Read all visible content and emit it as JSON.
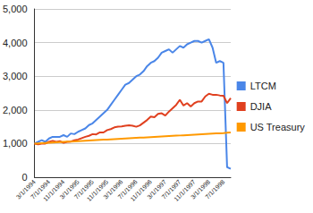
{
  "chart_data": {
    "type": "line",
    "categories": [
      "3/1/1994",
      null,
      null,
      null,
      "7/1/1994",
      null,
      null,
      null,
      "11/1/1994",
      null,
      null,
      null,
      "3/1/1995",
      null,
      null,
      null,
      "7/1/1995",
      null,
      null,
      null,
      "11/1/1995",
      null,
      null,
      null,
      "3/1/1996",
      null,
      null,
      null,
      "7/1/1996",
      null,
      null,
      null,
      "11/1/1996",
      null,
      null,
      null,
      "3/1/1997",
      null,
      null,
      null,
      "7/1/1997",
      null,
      null,
      null,
      "11/1/1997",
      null,
      null,
      null,
      "3/1/1998",
      null,
      null,
      null,
      "7/1/1998",
      null,
      null
    ],
    "series": [
      {
        "name": "LTCM",
        "color": "#4a86e8",
        "values": [
          1000,
          1050,
          1100,
          1050,
          1150,
          1200,
          1200,
          1200,
          1250,
          1200,
          1300,
          1280,
          1350,
          1400,
          1450,
          1550,
          1600,
          1700,
          1800,
          1900,
          2000,
          2150,
          2300,
          2450,
          2600,
          2750,
          2800,
          2900,
          3000,
          3050,
          3150,
          3300,
          3400,
          3450,
          3550,
          3700,
          3750,
          3800,
          3700,
          3800,
          3900,
          3850,
          3950,
          4000,
          4050,
          4050,
          4000,
          4050,
          4100,
          3850,
          3400,
          3450,
          3400,
          300,
          250
        ]
      },
      {
        "name": "DJIA",
        "color": "#e0401f",
        "values": [
          1000,
          980,
          1000,
          1000,
          1050,
          1080,
          1050,
          1070,
          1020,
          1050,
          1060,
          1100,
          1120,
          1160,
          1200,
          1230,
          1280,
          1270,
          1330,
          1330,
          1400,
          1430,
          1480,
          1500,
          1510,
          1530,
          1540,
          1530,
          1500,
          1540,
          1620,
          1700,
          1800,
          1780,
          1880,
          1900,
          1830,
          1950,
          2050,
          2150,
          2300,
          2130,
          2200,
          2100,
          2200,
          2250,
          2250,
          2400,
          2480,
          2450,
          2450,
          2430,
          2420,
          2200,
          2350
        ]
      },
      {
        "name": "US Treasury",
        "color": "#ff9900",
        "values": [
          1000,
          1006,
          1012,
          1018,
          1024,
          1030,
          1036,
          1042,
          1048,
          1054,
          1060,
          1066,
          1072,
          1078,
          1084,
          1090,
          1096,
          1102,
          1108,
          1114,
          1120,
          1126,
          1132,
          1138,
          1144,
          1150,
          1156,
          1162,
          1168,
          1174,
          1180,
          1186,
          1192,
          1198,
          1204,
          1210,
          1216,
          1222,
          1228,
          1234,
          1240,
          1246,
          1252,
          1258,
          1264,
          1270,
          1276,
          1282,
          1288,
          1294,
          1300,
          1306,
          1312,
          1320,
          1330
        ]
      }
    ],
    "ylim": [
      0,
      5000
    ],
    "yticks": [
      0,
      {
        "value": 1000,
        "label": "1,000"
      },
      {
        "value": 2000,
        "label": "2,000"
      },
      {
        "value": 3000,
        "label": "3,000"
      },
      {
        "value": 4000,
        "label": "4,000"
      },
      {
        "value": 5000,
        "label": "5,000"
      }
    ],
    "grid": true,
    "legend": "right"
  }
}
